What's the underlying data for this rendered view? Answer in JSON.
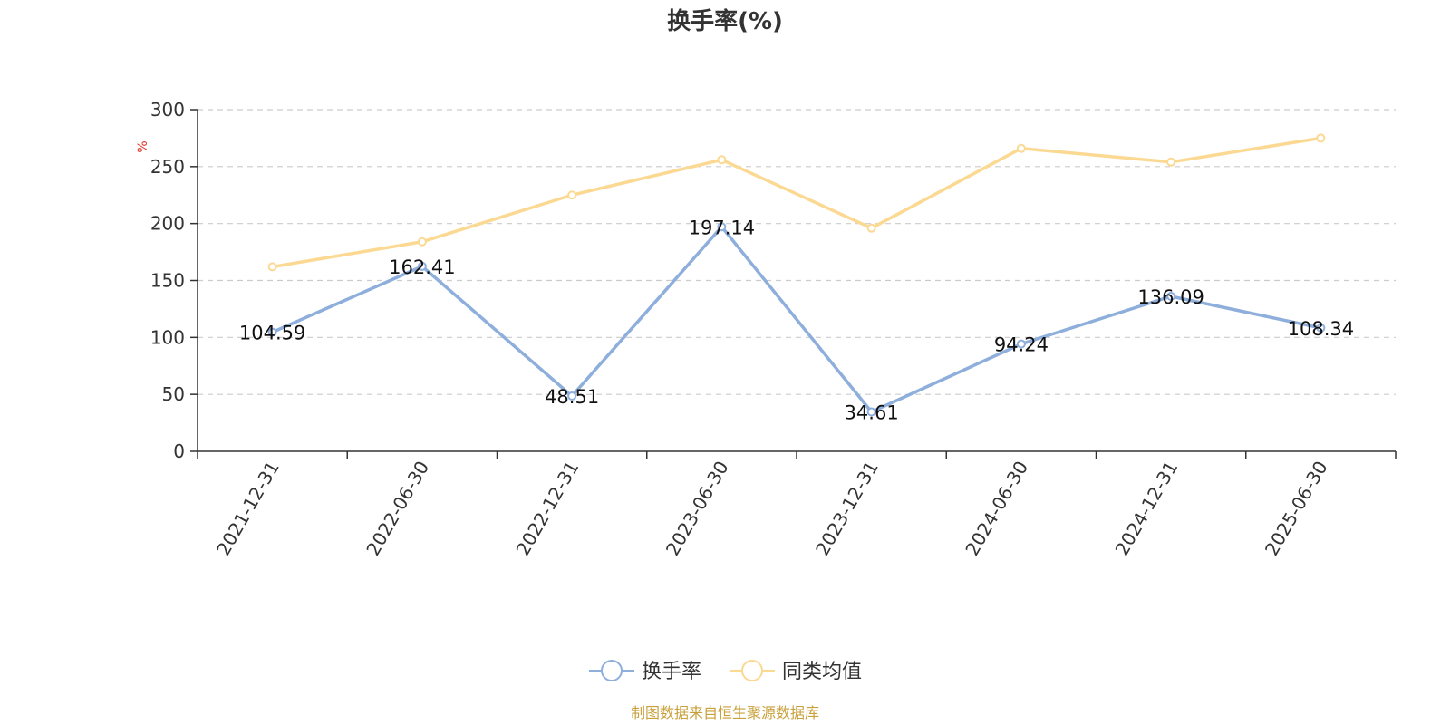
{
  "chart_data": {
    "type": "line",
    "title": "换手率(%)",
    "ylabel": "%",
    "xlabel": "",
    "ylim": [
      0,
      300
    ],
    "yticks": [
      0,
      50,
      100,
      150,
      200,
      250,
      300
    ],
    "grid": true,
    "legend_position": "bottom",
    "categories": [
      "2021-12-31",
      "2022-06-30",
      "2022-12-31",
      "2023-06-30",
      "2023-12-31",
      "2024-06-30",
      "2024-12-31",
      "2025-06-30"
    ],
    "series": [
      {
        "name": "换手率",
        "color": "#8eaedb",
        "values": [
          104.59,
          162.41,
          48.51,
          197.14,
          34.61,
          94.24,
          136.09,
          108.34
        ],
        "labels": [
          "104.59",
          "162.41",
          "48.51",
          "197.14",
          "34.61",
          "94.24",
          "136.09",
          "108.34"
        ]
      },
      {
        "name": "同类均值",
        "color": "#fbd993",
        "values": [
          162,
          184,
          225,
          256,
          196,
          266,
          254,
          275
        ]
      }
    ],
    "source": "制图数据来自恒生聚源数据库"
  }
}
